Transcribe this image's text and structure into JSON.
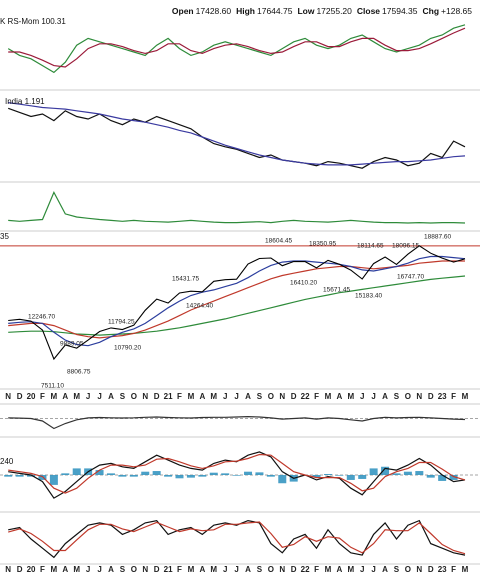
{
  "header": {
    "items": [
      {
        "label": "Open",
        "value": "17428.60"
      },
      {
        "label": "High",
        "value": "17644.75"
      },
      {
        "label": "Low",
        "value": "17255.20"
      },
      {
        "label": "Close",
        "value": "17594.35"
      },
      {
        "label": "Chg",
        "value": "+128.65"
      }
    ]
  },
  "chart_data": [
    {
      "type": "line",
      "label": "K RS-Mom 100.31",
      "ylim": [
        0,
        100
      ],
      "series": [
        {
          "color": "#2e8b3a",
          "values": [
            55,
            45,
            40,
            30,
            20,
            35,
            60,
            70,
            65,
            60,
            55,
            50,
            45,
            60,
            70,
            55,
            45,
            50,
            60,
            65,
            60,
            55,
            50,
            45,
            55,
            65,
            70,
            60,
            55,
            60,
            70,
            75,
            65,
            55,
            50,
            55,
            60,
            70,
            75,
            85,
            90
          ]
        },
        {
          "color": "#9b1b3a",
          "values": [
            50,
            50,
            45,
            38,
            30,
            28,
            40,
            55,
            62,
            62,
            58,
            52,
            48,
            52,
            62,
            62,
            52,
            48,
            55,
            60,
            62,
            58,
            52,
            48,
            50,
            58,
            65,
            65,
            58,
            58,
            65,
            70,
            70,
            60,
            52,
            52,
            55,
            62,
            70,
            78,
            85
          ]
        }
      ]
    },
    {
      "type": "line",
      "label": "India 1.191",
      "ylim": [
        0,
        100
      ],
      "series": [
        {
          "color": "#111111",
          "values": [
            85,
            80,
            75,
            78,
            70,
            82,
            75,
            72,
            78,
            70,
            65,
            72,
            68,
            75,
            70,
            65,
            60,
            50,
            42,
            38,
            35,
            30,
            25,
            28,
            22,
            20,
            18,
            15,
            20,
            18,
            15,
            12,
            20,
            25,
            22,
            15,
            18,
            30,
            25,
            45,
            38
          ]
        },
        {
          "color": "#3a3aa0",
          "values": [
            92,
            90,
            88,
            86,
            85,
            84,
            82,
            80,
            78,
            75,
            72,
            70,
            68,
            65,
            62,
            58,
            55,
            50,
            45,
            40,
            36,
            32,
            28,
            25,
            22,
            20,
            18,
            17,
            16,
            16,
            16,
            17,
            18,
            19,
            20,
            20,
            21,
            22,
            24,
            26,
            27
          ]
        }
      ]
    },
    {
      "type": "line",
      "ylim": [
        0,
        100
      ],
      "series": [
        {
          "color": "#2e8b3a",
          "values": [
            20,
            18,
            20,
            22,
            85,
            35,
            28,
            25,
            22,
            20,
            18,
            20,
            18,
            17,
            16,
            18,
            20,
            18,
            16,
            15,
            15,
            16,
            17,
            15,
            18,
            20,
            18,
            17,
            16,
            18,
            20,
            18,
            16,
            15,
            15,
            14,
            15,
            14,
            15,
            15,
            14
          ]
        }
      ]
    },
    {
      "type": "line",
      "label": "35",
      "ylim": [
        6000,
        20000
      ],
      "hline": 18750,
      "hline_color": "#c0392b",
      "categories": [
        "N",
        "D",
        "20",
        "F",
        "M",
        "A",
        "M",
        "J",
        "J",
        "A",
        "S",
        "O",
        "N",
        "D",
        "21",
        "F",
        "M",
        "A",
        "M",
        "J",
        "J",
        "A",
        "S",
        "O",
        "N",
        "D",
        "22",
        "F",
        "M",
        "A",
        "M",
        "J",
        "J",
        "A",
        "S",
        "O",
        "N",
        "D",
        "23",
        "F",
        "M"
      ],
      "series": [
        {
          "color": "#2e8b3a",
          "values": [
            11000,
            11050,
            11100,
            11100,
            11050,
            10950,
            10850,
            10800,
            10750,
            10800,
            10850,
            10900,
            11000,
            11100,
            11250,
            11400,
            11600,
            11800,
            12000,
            12200,
            12450,
            12700,
            12950,
            13200,
            13450,
            13700,
            13950,
            14150,
            14350,
            14550,
            14700,
            14850,
            15000,
            15150,
            15300,
            15450,
            15600,
            15750,
            15850,
            15950,
            16050
          ]
        },
        {
          "color": "#c0392b",
          "values": [
            11600,
            11700,
            11800,
            11800,
            11600,
            11200,
            10800,
            10600,
            10500,
            10600,
            10700,
            10900,
            11200,
            11600,
            12000,
            12500,
            13000,
            13400,
            13800,
            14200,
            14600,
            15000,
            15400,
            15800,
            16100,
            16300,
            16500,
            16700,
            16800,
            16900,
            16900,
            16800,
            16700,
            16800,
            16900,
            17000,
            17200,
            17300,
            17400,
            17400,
            17400
          ]
        },
        {
          "color": "#2c3e9e",
          "values": [
            11800,
            11900,
            11950,
            11800,
            11000,
            10300,
            9900,
            9800,
            10100,
            10600,
            11000,
            11300,
            11800,
            12500,
            13200,
            13800,
            14300,
            14600,
            14800,
            15100,
            15400,
            15900,
            16500,
            17000,
            17300,
            17400,
            17400,
            17300,
            17200,
            17100,
            16900,
            16600,
            16500,
            16700,
            16900,
            17200,
            17600,
            17800,
            17800,
            17700,
            17600
          ]
        },
        {
          "color": "#000000",
          "values": [
            12056,
            12168,
            12000,
            11200,
            8600,
            9860,
            9580,
            10300,
            11070,
            11390,
            11250,
            11640,
            12970,
            13980,
            13630,
            14530,
            14690,
            14630,
            15580,
            15720,
            15760,
            17130,
            17620,
            17670,
            16980,
            17350,
            17340,
            16790,
            17460,
            17100,
            16580,
            15780,
            17160,
            17760,
            17090,
            18010,
            18760,
            18100,
            17660,
            17300,
            17594
          ]
        }
      ],
      "annotations": [
        {
          "value": 18604.45,
          "label": "18604.45"
        },
        {
          "value": 18350.95,
          "label": "18350.95"
        },
        {
          "value": 18114.65,
          "label": "18114.65"
        },
        {
          "value": 18096.15,
          "label": "18096.15"
        },
        {
          "value": 18887.6,
          "label": "18887.60"
        },
        {
          "value": 15431.75,
          "label": "15431.75"
        },
        {
          "value": 14264.4,
          "label": "14264.40"
        },
        {
          "value": 16410.2,
          "label": "16410.20"
        },
        {
          "value": 15671.45,
          "label": "15671.45"
        },
        {
          "value": 16747.7,
          "label": "16747.70"
        },
        {
          "value": 15183.4,
          "label": "15183.40"
        },
        {
          "value": 12246.7,
          "label": "12246.70"
        },
        {
          "value": 11794.25,
          "label": "11794.25"
        },
        {
          "value": 10790.2,
          "label": "10790.20"
        },
        {
          "value": 9889.05,
          "label": "9889.05"
        },
        {
          "value": 8806.75,
          "label": "8806.75"
        },
        {
          "value": 7511.1,
          "label": "7511.10"
        }
      ]
    },
    {
      "type": "line",
      "ylim": [
        -100,
        100
      ],
      "zero_line": true,
      "series": [
        {
          "color": "#333333",
          "values": [
            5,
            3,
            0,
            -20,
            -80,
            -40,
            -10,
            5,
            8,
            6,
            4,
            6,
            10,
            12,
            8,
            6,
            4,
            8,
            10,
            10,
            12,
            15,
            12,
            5,
            -5,
            0,
            5,
            -5,
            5,
            0,
            -10,
            -20,
            0,
            10,
            5,
            8,
            10,
            5,
            0,
            -5,
            -8
          ]
        }
      ]
    },
    {
      "type": "line",
      "label": "240",
      "ylim": [
        -100,
        100
      ],
      "zero_line": true,
      "series": [
        {
          "color": "#2a8fbd",
          "style": "bar",
          "values": [
            -5,
            -5,
            -5,
            -15,
            -30,
            5,
            20,
            20,
            15,
            5,
            -5,
            -5,
            10,
            12,
            -5,
            -10,
            -8,
            -5,
            7,
            5,
            -2,
            10,
            8,
            -5,
            -25,
            -20,
            0,
            -7,
            3,
            -2,
            -15,
            -12,
            20,
            25,
            5,
            10,
            12,
            -8,
            -18,
            -15,
            0
          ]
        },
        {
          "color": "#111111",
          "values": [
            10,
            5,
            0,
            -20,
            -70,
            -50,
            -20,
            10,
            30,
            35,
            25,
            20,
            40,
            60,
            45,
            30,
            20,
            15,
            35,
            45,
            40,
            60,
            70,
            55,
            10,
            -10,
            0,
            -15,
            -5,
            -10,
            -40,
            -60,
            -20,
            20,
            15,
            30,
            50,
            30,
            0,
            -20,
            -15
          ]
        },
        {
          "color": "#c0392b",
          "values": [
            15,
            10,
            5,
            -5,
            -40,
            -55,
            -40,
            -10,
            15,
            30,
            30,
            25,
            30,
            48,
            50,
            40,
            28,
            20,
            28,
            40,
            42,
            50,
            62,
            60,
            35,
            10,
            0,
            -8,
            -8,
            -8,
            -25,
            -48,
            -40,
            -5,
            10,
            20,
            38,
            38,
            18,
            -5,
            -15
          ]
        }
      ]
    },
    {
      "type": "line",
      "ylim": [
        0,
        100
      ],
      "series": [
        {
          "color": "#111111",
          "values": [
            70,
            75,
            50,
            30,
            10,
            40,
            60,
            80,
            85,
            80,
            60,
            70,
            85,
            90,
            60,
            70,
            75,
            60,
            80,
            85,
            80,
            90,
            85,
            40,
            20,
            50,
            60,
            30,
            70,
            40,
            20,
            15,
            60,
            85,
            50,
            80,
            90,
            40,
            30,
            20,
            15
          ]
        },
        {
          "color": "#c0392b",
          "values": [
            65,
            72,
            62,
            45,
            25,
            25,
            48,
            70,
            82,
            82,
            72,
            66,
            76,
            86,
            76,
            66,
            72,
            68,
            70,
            82,
            82,
            85,
            87,
            62,
            32,
            38,
            55,
            45,
            55,
            52,
            32,
            20,
            40,
            70,
            68,
            68,
            85,
            62,
            38,
            25,
            18
          ]
        }
      ]
    }
  ]
}
